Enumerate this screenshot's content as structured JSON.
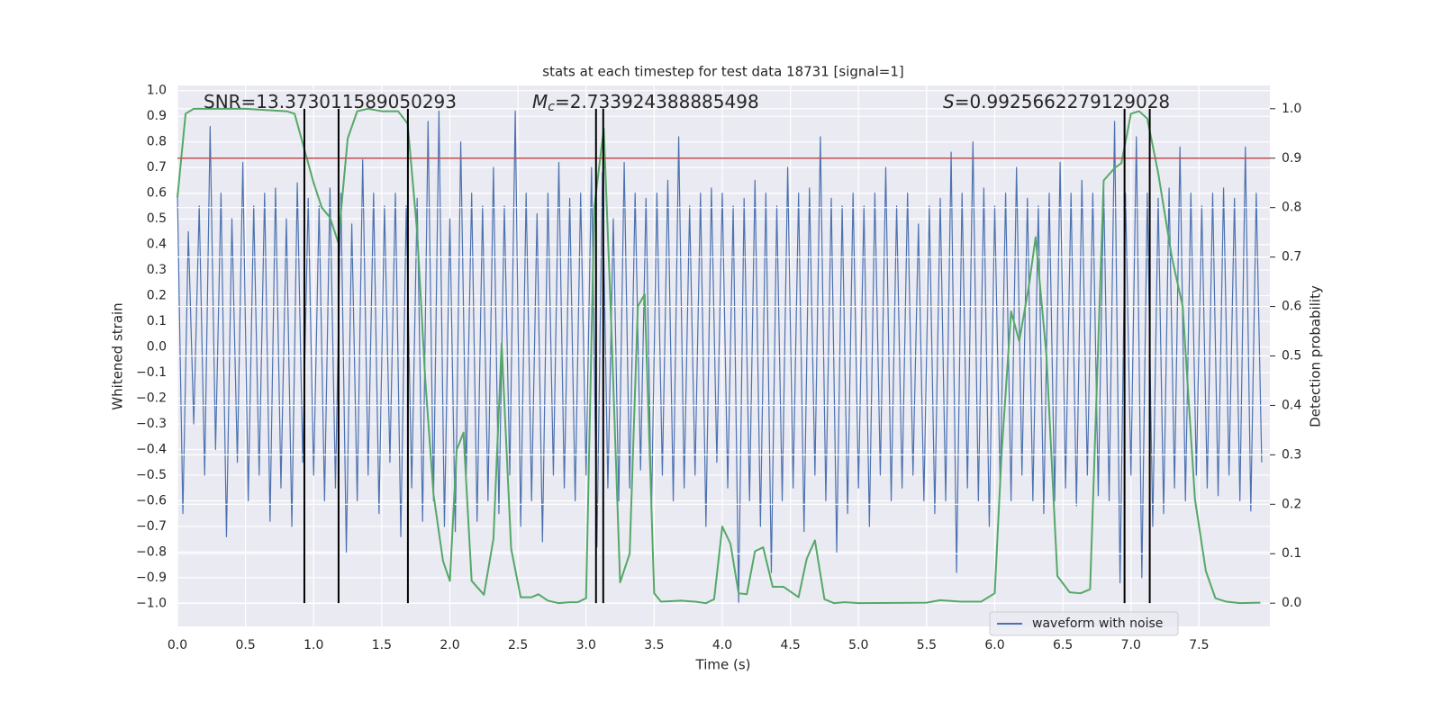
{
  "chart_data": {
    "type": "line",
    "title": "stats at each timestep for test data 18731 [signal=1]",
    "xlabel": "Time (s)",
    "ylabel": "Whitened strain",
    "y2label": "Detection probability",
    "annotations": [
      {
        "text": "SNR=13.373011589050293"
      },
      {
        "symbol": "M",
        "sub": "c",
        "text": "=2.733924388885498"
      },
      {
        "symbol": "S",
        "text": "=0.9925662279129028"
      }
    ],
    "xlim": [
      0,
      8.02
    ],
    "ylim": [
      -1.09,
      1.02
    ],
    "y2lim": [
      -0.047,
      1.047
    ],
    "xticks": [
      {
        "value": 0,
        "label": "0.0"
      },
      0.5,
      {
        "value": 1,
        "label": "1.0"
      },
      1.5,
      {
        "value": 2,
        "label": "2.0"
      },
      2.5,
      {
        "value": 3,
        "label": "3.0"
      },
      3.5,
      {
        "value": 4,
        "label": "4.0"
      },
      4.5,
      {
        "value": 5,
        "label": "5.0"
      },
      5.5,
      {
        "value": 6,
        "label": "6.0"
      },
      6.5,
      {
        "value": 7,
        "label": "7.0"
      },
      7.5
    ],
    "yticks": [
      {
        "value": 1,
        "label": "1.0"
      },
      0.9,
      0.8,
      0.7,
      0.6,
      0.5,
      0.4,
      0.3,
      0.2,
      0.1,
      {
        "value": 0,
        "label": "0.0"
      },
      {
        "value": -0.1,
        "label": "−0.1"
      },
      {
        "value": -0.2,
        "label": "−0.2"
      },
      {
        "value": -0.3,
        "label": "−0.3"
      },
      {
        "value": -0.4,
        "label": "−0.4"
      },
      {
        "value": -0.5,
        "label": "−0.5"
      },
      {
        "value": -0.6,
        "label": "−0.6"
      },
      {
        "value": -0.7,
        "label": "−0.7"
      },
      {
        "value": -0.8,
        "label": "−0.8"
      },
      {
        "value": -0.9,
        "label": "−0.9"
      },
      {
        "value": -1,
        "label": "−1.0"
      }
    ],
    "y2ticks": [
      {
        "value": 0,
        "label": "0.0"
      },
      0.1,
      0.2,
      0.3,
      0.4,
      0.5,
      0.6,
      0.7,
      0.8,
      0.9,
      {
        "value": 1,
        "label": "1.0"
      }
    ],
    "grid": true,
    "legend": "lower right",
    "threshold": {
      "value": 0.9,
      "color": "#c44e52",
      "axis": "y2"
    },
    "vlines": {
      "x": [
        0.932,
        1.183,
        1.692,
        3.073,
        3.126,
        6.953,
        7.138
      ],
      "ymin": 0,
      "ymax": 1,
      "axis": "y2",
      "color": "#000000"
    },
    "series": [
      {
        "name": "waveform with noise",
        "color": "#4c72b0",
        "axis": "y",
        "x": [
          0,
          0.04,
          0.08,
          0.12,
          0.16,
          0.2,
          0.24,
          0.28,
          0.32,
          0.36,
          0.4,
          0.44,
          0.48,
          0.52,
          0.56,
          0.6,
          0.64,
          0.68,
          0.72,
          0.76,
          0.8,
          0.84,
          0.88,
          0.92,
          0.96,
          1,
          1.04,
          1.08,
          1.12,
          1.16,
          1.2,
          1.24,
          1.28,
          1.32,
          1.36,
          1.4,
          1.44,
          1.48,
          1.52,
          1.56,
          1.6,
          1.64,
          1.68,
          1.72,
          1.76,
          1.8,
          1.84,
          1.88,
          1.92,
          1.96,
          2,
          2.04,
          2.08,
          2.12,
          2.16,
          2.2,
          2.24,
          2.28,
          2.32,
          2.36,
          2.4,
          2.44,
          2.48,
          2.52,
          2.56,
          2.6,
          2.64,
          2.68,
          2.72,
          2.76,
          2.8,
          2.84,
          2.88,
          2.92,
          2.96,
          3,
          3.04,
          3.08,
          3.12,
          3.16,
          3.2,
          3.24,
          3.28,
          3.32,
          3.36,
          3.4,
          3.44,
          3.48,
          3.52,
          3.56,
          3.6,
          3.64,
          3.68,
          3.72,
          3.76,
          3.8,
          3.84,
          3.88,
          3.92,
          3.96,
          4,
          4.04,
          4.08,
          4.12,
          4.16,
          4.2,
          4.24,
          4.28,
          4.32,
          4.36,
          4.4,
          4.44,
          4.48,
          4.52,
          4.56,
          4.6,
          4.64,
          4.68,
          4.72,
          4.76,
          4.8,
          4.84,
          4.88,
          4.92,
          4.96,
          5,
          5.04,
          5.08,
          5.12,
          5.16,
          5.2,
          5.24,
          5.28,
          5.32,
          5.36,
          5.4,
          5.44,
          5.48,
          5.52,
          5.56,
          5.6,
          5.64,
          5.68,
          5.72,
          5.76,
          5.8,
          5.84,
          5.88,
          5.92,
          5.96,
          6,
          6.04,
          6.08,
          6.12,
          6.16,
          6.2,
          6.24,
          6.28,
          6.32,
          6.36,
          6.4,
          6.44,
          6.48,
          6.52,
          6.56,
          6.6,
          6.64,
          6.68,
          6.72,
          6.76,
          6.8,
          6.84,
          6.88,
          6.92,
          6.96,
          7,
          7.04,
          7.08,
          7.12,
          7.16,
          7.2,
          7.24,
          7.28,
          7.32,
          7.36,
          7.4,
          7.44,
          7.48,
          7.52,
          7.56,
          7.6,
          7.64,
          7.68,
          7.72,
          7.76,
          7.8,
          7.84,
          7.88,
          7.92,
          7.96
        ],
        "values": [
          0.6,
          -0.65,
          0.45,
          -0.3,
          0.55,
          -0.5,
          0.86,
          -0.4,
          0.6,
          -0.74,
          0.5,
          -0.45,
          0.72,
          -0.6,
          0.55,
          -0.5,
          0.6,
          -0.68,
          0.62,
          -0.55,
          0.5,
          -0.7,
          0.64,
          -0.45,
          0.58,
          -0.5,
          0.55,
          -0.6,
          0.62,
          -0.55,
          0.6,
          -0.8,
          0.48,
          -0.6,
          0.73,
          -0.5,
          0.6,
          -0.65,
          0.55,
          -0.45,
          0.6,
          -0.74,
          0.55,
          -0.55,
          0.58,
          -0.68,
          0.88,
          -0.6,
          0.92,
          -0.7,
          0.5,
          -0.72,
          0.8,
          -0.5,
          0.6,
          -0.68,
          0.55,
          -0.6,
          0.7,
          -0.65,
          0.55,
          -0.5,
          0.92,
          -0.7,
          0.6,
          -0.6,
          0.52,
          -0.76,
          0.6,
          -0.5,
          0.72,
          -0.55,
          0.58,
          -0.6,
          0.6,
          -0.5,
          0.7,
          -0.78,
          0.68,
          -0.55,
          0.5,
          -0.6,
          0.72,
          -0.55,
          0.6,
          -0.48,
          0.58,
          -0.65,
          0.6,
          -0.5,
          0.65,
          -0.6,
          0.82,
          -0.55,
          0.55,
          -0.5,
          0.6,
          -0.7,
          0.62,
          -0.45,
          0.6,
          -0.55,
          0.55,
          -1.0,
          0.58,
          -0.6,
          0.65,
          -0.7,
          0.6,
          -0.88,
          0.55,
          -0.6,
          0.7,
          -0.55,
          0.6,
          -0.72,
          0.62,
          -0.5,
          0.82,
          -0.6,
          0.58,
          -0.8,
          0.55,
          -0.65,
          0.6,
          -0.55,
          0.55,
          -0.7,
          0.6,
          -0.5,
          0.7,
          -0.6,
          0.55,
          -0.55,
          0.6,
          -0.5,
          0.48,
          -0.6,
          0.55,
          -0.65,
          0.58,
          -0.6,
          0.76,
          -0.88,
          0.6,
          -0.55,
          0.8,
          -0.6,
          0.62,
          -0.7,
          0.55,
          -0.55,
          0.6,
          -0.6,
          0.7,
          -0.5,
          0.58,
          -0.6,
          0.55,
          -0.65,
          0.6,
          -0.6,
          0.72,
          -0.55,
          0.6,
          -0.62,
          0.65,
          -0.5,
          0.6,
          -0.58,
          0.62,
          -0.6,
          0.88,
          -0.92,
          0.6,
          -0.5,
          0.82,
          -0.9,
          0.6,
          -0.7,
          0.58,
          -0.65,
          0.62,
          -0.55,
          0.78,
          -0.6,
          0.6,
          -0.5,
          0.55,
          -0.55,
          0.6,
          -0.58,
          0.62,
          -0.5,
          0.58,
          -0.6,
          0.78,
          -0.64,
          0.6,
          -0.45
        ]
      },
      {
        "color": "#55a868",
        "axis": "y2",
        "x": [
          0,
          0.06,
          0.12,
          0.2,
          0.5,
          0.8,
          0.86,
          0.92,
          1,
          1.06,
          1.12,
          1.18,
          1.25,
          1.32,
          1.4,
          1.5,
          1.62,
          1.69,
          1.76,
          1.82,
          1.88,
          1.95,
          2,
          2.05,
          2.1,
          2.16,
          2.25,
          2.32,
          2.38,
          2.45,
          2.52,
          2.6,
          2.65,
          2.72,
          2.8,
          2.88,
          2.94,
          3,
          3.06,
          3.13,
          3.18,
          3.25,
          3.32,
          3.38,
          3.43,
          3.5,
          3.55,
          3.7,
          3.8,
          3.88,
          3.94,
          4,
          4.06,
          4.12,
          4.18,
          4.24,
          4.3,
          4.37,
          4.45,
          4.56,
          4.62,
          4.68,
          4.75,
          4.82,
          4.9,
          5,
          5.5,
          5.6,
          5.75,
          5.9,
          6,
          6.05,
          6.12,
          6.18,
          6.25,
          6.3,
          6.38,
          6.46,
          6.55,
          6.63,
          6.7,
          6.8,
          6.88,
          6.93,
          7,
          7.06,
          7.12,
          7.2,
          7.3,
          7.38,
          7.47,
          7.55,
          7.62,
          7.7,
          7.8,
          7.95
        ],
        "values": [
          0.82,
          0.99,
          1,
          1,
          1,
          0.995,
          0.99,
          0.93,
          0.85,
          0.8,
          0.78,
          0.73,
          0.94,
          0.995,
          1,
          0.995,
          0.995,
          0.97,
          0.75,
          0.45,
          0.22,
          0.085,
          0.045,
          0.31,
          0.345,
          0.045,
          0.017,
          0.13,
          0.525,
          0.11,
          0.012,
          0.012,
          0.018,
          0.005,
          0,
          0.002,
          0.002,
          0.01,
          0.8,
          0.96,
          0.6,
          0.042,
          0.1,
          0.6,
          0.625,
          0.02,
          0.003,
          0.005,
          0.003,
          0,
          0.008,
          0.155,
          0.12,
          0.02,
          0.018,
          0.105,
          0.113,
          0.033,
          0.033,
          0.012,
          0.09,
          0.127,
          0.008,
          0,
          0.002,
          0,
          0.001,
          0.006,
          0.003,
          0.003,
          0.02,
          0.3,
          0.59,
          0.53,
          0.64,
          0.74,
          0.5,
          0.055,
          0.022,
          0.02,
          0.028,
          0.855,
          0.88,
          0.89,
          0.99,
          0.995,
          0.98,
          0.87,
          0.7,
          0.6,
          0.21,
          0.065,
          0.01,
          0.003,
          0,
          0.001
        ]
      }
    ]
  }
}
